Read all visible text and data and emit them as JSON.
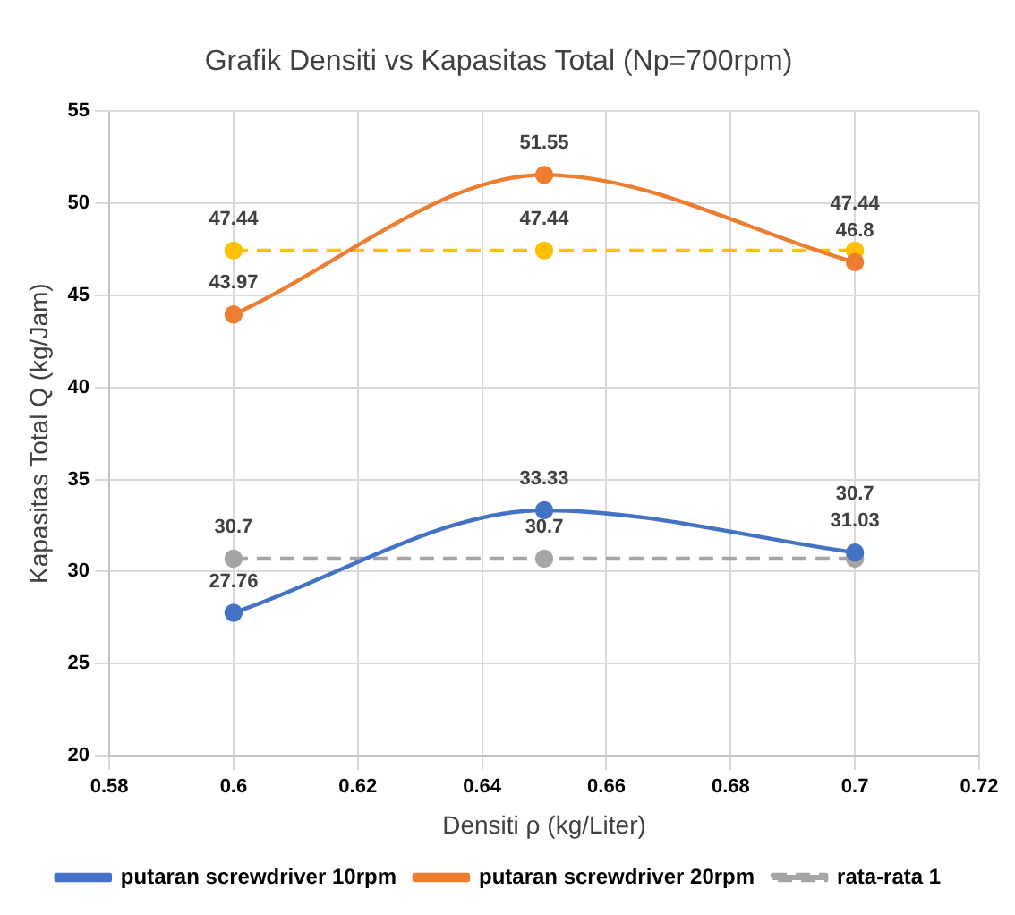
{
  "chart_data": {
    "type": "line",
    "title": "Grafik Densiti vs Kapasitas Total (Np=700rpm)",
    "xlabel": "Densiti ρ (kg/Liter)",
    "ylabel": "Kapasitas Total Q (kg/Jam)",
    "x": [
      0.6,
      0.65,
      0.7
    ],
    "series": [
      {
        "name": "putaran screwdriver 10rpm",
        "color": "#4472c4",
        "values": [
          27.76,
          33.33,
          31.03
        ]
      },
      {
        "name": "putaran screwdriver 20rpm",
        "color": "#ed7d31",
        "values": [
          43.97,
          51.55,
          46.8
        ]
      },
      {
        "name": "rata-rata 1",
        "color": "#a5a5a5",
        "line_style": "dashed",
        "values": [
          30.7,
          30.7,
          30.7
        ]
      },
      {
        "color": "#ffc000",
        "line_style": "dashed",
        "values": [
          47.44,
          47.44,
          47.44
        ]
      }
    ],
    "xlim": [
      0.58,
      0.72
    ],
    "xticks": [
      0.58,
      0.6,
      0.62,
      0.64,
      0.66,
      0.68,
      0.7,
      0.72
    ],
    "ylim": [
      20,
      55
    ],
    "yticks": [
      20,
      25,
      30,
      35,
      40,
      45,
      50,
      55
    ],
    "grid": true,
    "legend": "bottom",
    "marker": "circle",
    "data_labels": true
  }
}
